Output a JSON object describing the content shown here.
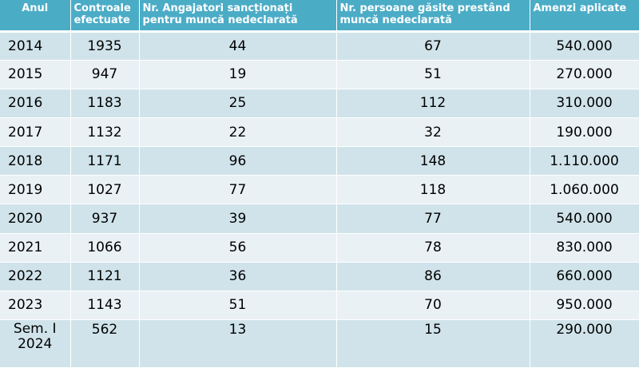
{
  "headers": [
    "Anul",
    "Controale efectuate",
    "Nr. Angajatori sancționați pentru muncă nedeclarată",
    "Nr. persoane găsite  prestând muncă nedeclarată",
    "Amenzi aplicate"
  ],
  "rows": [
    [
      "2014",
      "1935",
      "44",
      "67",
      "540.000"
    ],
    [
      "2015",
      "947",
      "19",
      "51",
      "270.000"
    ],
    [
      "2016",
      "1183",
      "25",
      "112",
      "310.000"
    ],
    [
      "2017",
      "1132",
      "22",
      "32",
      "190.000"
    ],
    [
      "2018",
      "1171",
      "96",
      "148",
      "1.110.000"
    ],
    [
      "2019",
      "1027",
      "77",
      "118",
      "1.060.000"
    ],
    [
      "2020",
      "937",
      "39",
      "77",
      "540.000"
    ],
    [
      "2021",
      "1066",
      "56",
      "78",
      "830.000"
    ],
    [
      "2022",
      "1121",
      "36",
      "86",
      "660.000"
    ],
    [
      "2023",
      "1143",
      "51",
      "70",
      "950.000"
    ],
    [
      "Sem. I 2024",
      "562",
      "13",
      "15",
      "290.000"
    ]
  ],
  "colors": {
    "header_bg": "#4bacc6",
    "row_odd": "#d0e3ea",
    "row_even": "#e9f1f5"
  }
}
